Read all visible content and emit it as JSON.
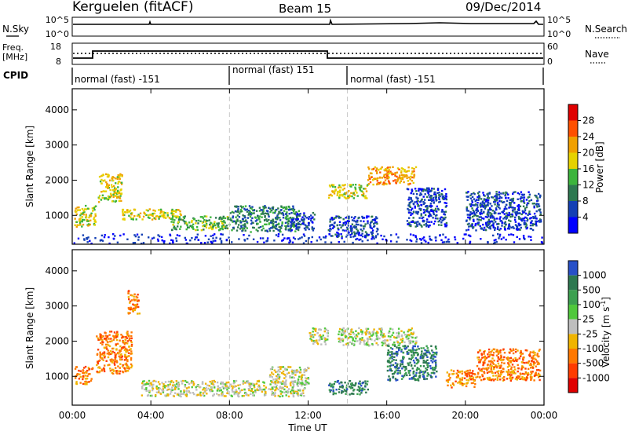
{
  "header": {
    "title": "Kerguelen (fitACF)",
    "beam": "Beam 15",
    "date": "09/Dec/2014"
  },
  "top_panels": {
    "nsky_label": "N.Sky",
    "nsky_ticks": [
      "10^5",
      "10^0"
    ],
    "nsearch_label": "N.Search",
    "nsearch_ticks": [
      "10^5",
      "10^0"
    ],
    "freq_label": "Freq.",
    "freq_unit": "[MHz]",
    "freq_ticks": [
      "18",
      "8"
    ],
    "nave_label": "Nave",
    "nave_ticks": [
      "60",
      "0"
    ],
    "cpid_label": "CPID",
    "cpid_segments": [
      {
        "start_hour": 0,
        "end_hour": 8,
        "label": "normal (fast) -151"
      },
      {
        "start_hour": 8,
        "end_hour": 14,
        "label": "normal (fast) 151"
      },
      {
        "start_hour": 14,
        "end_hour": 24,
        "label": "normal (fast) -151"
      }
    ]
  },
  "chart_data": [
    {
      "type": "heatmap",
      "quantity": "Power",
      "xlabel": "Time UT",
      "ylabel": "Slant Range [km]",
      "xlim": [
        0,
        24
      ],
      "ylim": [
        180,
        4600
      ],
      "x_ticks": [
        "00:00",
        "04:00",
        "08:00",
        "12:00",
        "16:00",
        "20:00",
        "00:00"
      ],
      "y_ticks": [
        1000,
        2000,
        3000,
        4000
      ],
      "colorbar_label": "Power [dB]",
      "colorbar_ticks": [
        "28",
        "24",
        "20",
        "16",
        "12",
        "8",
        "4"
      ],
      "colorbar_colors": [
        "#e00000",
        "#ff5000",
        "#f0a000",
        "#e6d200",
        "#3cb43c",
        "#2d7850",
        "#1440b4",
        "#0000ff"
      ],
      "regions": [
        {
          "t0": 0.1,
          "t1": 1.2,
          "r0": 700,
          "r1": 1300,
          "level": 3
        },
        {
          "t0": 1.3,
          "t1": 2.5,
          "r0": 1400,
          "r1": 2200,
          "level": 3
        },
        {
          "t0": 2.5,
          "t1": 5.5,
          "r0": 900,
          "r1": 1200,
          "level": 3
        },
        {
          "t0": 5.0,
          "t1": 8.0,
          "r0": 600,
          "r1": 1000,
          "level": 4
        },
        {
          "t0": 8.0,
          "t1": 11.5,
          "r0": 550,
          "r1": 1300,
          "level": 5
        },
        {
          "t0": 11.0,
          "t1": 12.3,
          "r0": 600,
          "r1": 1100,
          "level": 6
        },
        {
          "t0": 13.0,
          "t1": 15.0,
          "r0": 1500,
          "r1": 1900,
          "level": 3
        },
        {
          "t0": 13.0,
          "t1": 15.5,
          "r0": 400,
          "r1": 1000,
          "level": 6
        },
        {
          "t0": 15.0,
          "t1": 17.5,
          "r0": 1900,
          "r1": 2400,
          "level": 2
        },
        {
          "t0": 17.0,
          "t1": 19.0,
          "r0": 700,
          "r1": 1800,
          "level": 6
        },
        {
          "t0": 20.0,
          "t1": 23.8,
          "r0": 600,
          "r1": 1700,
          "level": 6
        }
      ]
    },
    {
      "type": "heatmap",
      "quantity": "Velocity",
      "xlabel": "Time UT",
      "ylabel": "Slant Range [km]",
      "xlim": [
        0,
        24
      ],
      "ylim": [
        180,
        4600
      ],
      "x_ticks": [
        "00:00",
        "04:00",
        "08:00",
        "12:00",
        "16:00",
        "20:00",
        "00:00"
      ],
      "y_ticks": [
        1000,
        2000,
        3000,
        4000
      ],
      "colorbar_label": "Velocity [m s",
      "colorbar_label_sup": "-1",
      "colorbar_label_close": "]",
      "colorbar_ticks": [
        "1000",
        "500",
        "100",
        "25",
        "-25",
        "-100",
        "-500",
        "-1000"
      ],
      "colorbar_colors": [
        "#2850c8",
        "#2d7850",
        "#3ca050",
        "#50c83c",
        "#bebebe",
        "#f0b400",
        "#ff7800",
        "#ff3c00",
        "#e00000"
      ],
      "regions": [
        {
          "t0": 0.1,
          "t1": 1.0,
          "r0": 800,
          "r1": 1300,
          "level": 6
        },
        {
          "t0": 1.2,
          "t1": 3.0,
          "r0": 1100,
          "r1": 2300,
          "level": 6
        },
        {
          "t0": 2.8,
          "t1": 3.4,
          "r0": 2800,
          "r1": 3500,
          "level": 6
        },
        {
          "t0": 3.5,
          "t1": 11.8,
          "r0": 450,
          "r1": 900,
          "level": 4
        },
        {
          "t0": 10.0,
          "t1": 12.0,
          "r0": 800,
          "r1": 1300,
          "level": 4
        },
        {
          "t0": 12.0,
          "t1": 13.0,
          "r0": 1900,
          "r1": 2400,
          "level": 4
        },
        {
          "t0": 13.0,
          "t1": 15.0,
          "r0": 500,
          "r1": 900,
          "level": 1
        },
        {
          "t0": 13.5,
          "t1": 17.5,
          "r0": 1900,
          "r1": 2400,
          "level": 4
        },
        {
          "t0": 16.0,
          "t1": 18.5,
          "r0": 900,
          "r1": 1900,
          "level": 1
        },
        {
          "t0": 19.0,
          "t1": 20.5,
          "r0": 700,
          "r1": 1200,
          "level": 6
        },
        {
          "t0": 20.5,
          "t1": 23.8,
          "r0": 900,
          "r1": 1800,
          "level": 6
        }
      ]
    }
  ]
}
